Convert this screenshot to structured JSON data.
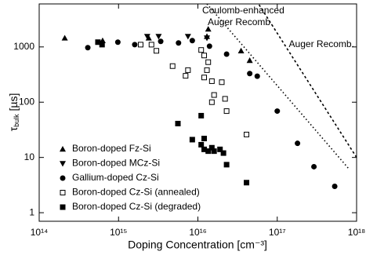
{
  "chart_data": {
    "type": "scatter",
    "xlabel": "Doping Concentration [cm⁻³]",
    "ylabel": {
      "symbol": "τ",
      "subscript": "bulk",
      "unit": " [µs]"
    },
    "xscale": "log",
    "yscale": "log",
    "xlim": [
      100000000000000.0,
      1e+18
    ],
    "ylim": [
      0.7,
      6000
    ],
    "xticks": [
      {
        "value": 100000000000000.0,
        "label": "10¹⁴"
      },
      {
        "value": 1000000000000000.0,
        "label": "10¹⁵"
      },
      {
        "value": 1e+16,
        "label": "10¹⁶"
      },
      {
        "value": 1e+17,
        "label": "10¹⁷"
      },
      {
        "value": 1e+18,
        "label": "10¹⁸"
      }
    ],
    "yticks": [
      1,
      10,
      100,
      1000
    ],
    "legend": "lower left",
    "series": [
      {
        "name": "Boron-doped Fz-Si",
        "marker": "triangle-up",
        "color": "#000000",
        "x": [
          210000000000000.0,
          630000000000000.0,
          2400000000000000.0,
          1.35e+16,
          1.3e+16,
          3.5e+16,
          4.5e+16
        ],
        "values": [
          1450,
          1300,
          1450,
          2100,
          1550,
          850,
          570
        ]
      },
      {
        "name": "Boron-doped MCz-Si",
        "marker": "triangle-down",
        "color": "#000000",
        "x": [
          2300000000000000.0,
          3200000000000000.0,
          7500000000000000.0,
          1.3e+16
        ],
        "values": [
          1550,
          1550,
          1550,
          1450
        ]
      },
      {
        "name": "Gallium-doped Cz-Si",
        "marker": "circle",
        "color": "#000000",
        "x": [
          410000000000000.0,
          980000000000000.0,
          1600000000000000.0,
          3400000000000000.0,
          5700000000000000.0,
          8500000000000000.0,
          1.4e+16,
          2.3e+16,
          4.5e+16,
          5.6e+16,
          1e+17,
          1.8e+17,
          2.9e+17,
          5.3e+17
        ],
        "values": [
          970,
          1220,
          1100,
          1260,
          1180,
          1300,
          1030,
          740,
          330,
          295,
          69,
          18,
          6.8,
          3
        ]
      },
      {
        "name": "Boron-doped Cz-Si (annealed)",
        "marker": "square-open",
        "color": "#000000",
        "x": [
          1900000000000000.0,
          2600000000000000.0,
          3000000000000000.0,
          4800000000000000.0,
          7500000000000000.0,
          7000000000000000.0,
          1.1e+16,
          1.2e+16,
          1.35e+16,
          1.3e+16,
          1.2e+16,
          1.5e+16,
          1.5e+16,
          1.6e+16,
          2e+16,
          2.2e+16,
          2.3e+16,
          4.1e+16
        ],
        "values": [
          1100,
          1100,
          850,
          450,
          380,
          300,
          880,
          700,
          530,
          380,
          280,
          240,
          100,
          135,
          230,
          115,
          69,
          26
        ]
      },
      {
        "name": "Boron-doped Cz-Si (degraded)",
        "marker": "square",
        "color": "#000000",
        "x": [
          550000000000000.0,
          620000000000000.0,
          5600000000000000.0,
          8500000000000000.0,
          1.1e+16,
          1.1e+16,
          1.2e+16,
          1.2e+16,
          1.35e+16,
          1.5e+16,
          1.6e+16,
          1.9e+16,
          2.1e+16,
          2.3e+16,
          4.1e+16
        ],
        "values": [
          1220,
          1100,
          41,
          21,
          57,
          17,
          22,
          14,
          13,
          15,
          13,
          14,
          12,
          7.4,
          3.5
        ]
      }
    ],
    "curves": [
      {
        "label": [
          "Coulomb-enhanced",
          "Auger Recomb."
        ],
        "style": "dotted",
        "x": [
          1.3e+16,
          8e+17
        ],
        "values": [
          6000,
          6.2
        ]
      },
      {
        "label": [
          "Auger Recomb."
        ],
        "style": "dashed",
        "x": [
          5.9e+16,
          1e+18
        ],
        "values": [
          5800,
          10
        ]
      }
    ]
  }
}
